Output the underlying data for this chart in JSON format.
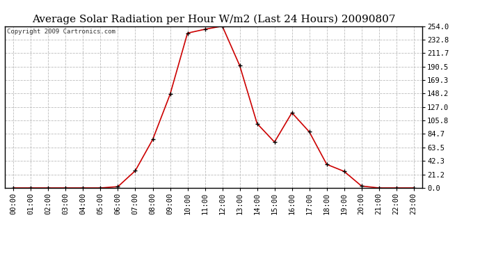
{
  "title": "Average Solar Radiation per Hour W/m2 (Last 24 Hours) 20090807",
  "copyright_text": "Copyright 2009 Cartronics.com",
  "x_labels": [
    "00:00",
    "01:00",
    "02:00",
    "03:00",
    "04:00",
    "05:00",
    "06:00",
    "07:00",
    "08:00",
    "09:00",
    "10:00",
    "11:00",
    "12:00",
    "13:00",
    "14:00",
    "15:00",
    "16:00",
    "17:00",
    "18:00",
    "19:00",
    "20:00",
    "21:00",
    "22:00",
    "23:00"
  ],
  "y_values": [
    0.0,
    0.0,
    0.0,
    0.0,
    0.0,
    0.0,
    2.0,
    27.0,
    76.0,
    147.0,
    243.0,
    249.0,
    254.0,
    192.0,
    101.0,
    72.0,
    118.0,
    88.0,
    37.0,
    26.0,
    3.0,
    0.0,
    0.0,
    0.0
  ],
  "line_color": "#cc0000",
  "marker_color": "#000000",
  "bg_color": "#ffffff",
  "grid_color": "#bbbbbb",
  "y_max": 254.0,
  "y_min": 0.0,
  "y_ticks": [
    0.0,
    21.2,
    42.3,
    63.5,
    84.7,
    105.8,
    127.0,
    148.2,
    169.3,
    190.5,
    211.7,
    232.8,
    254.0
  ],
  "title_fontsize": 11,
  "copyright_fontsize": 6.5,
  "tick_fontsize": 7.5,
  "y_tick_fontsize": 7.5
}
